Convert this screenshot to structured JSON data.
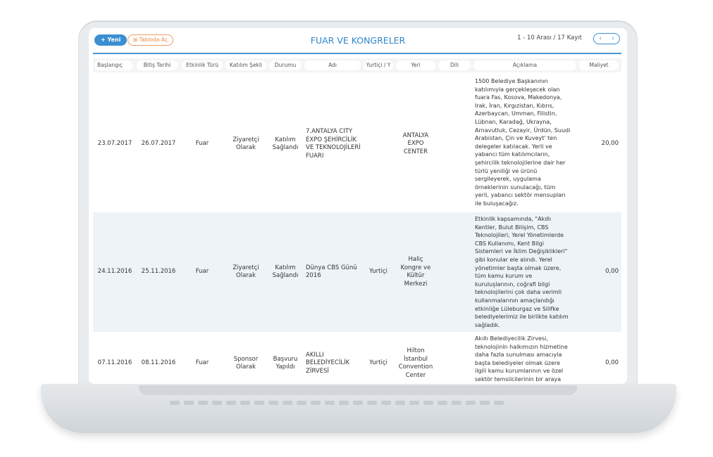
{
  "toolbar": {
    "new_label": "+ Yeni",
    "table_label": "⊞ Tabloda Aç",
    "title": "FUAR VE KONGRELER",
    "range_text": "1 - 10 Arası  /  17 Kayıt",
    "prev": "‹",
    "next": "›"
  },
  "columns": [
    "Başlangıç",
    "Bitiş Tarihi",
    "Etkinlik Türü",
    "Katılım Şekli",
    "Durumu",
    "Adı",
    "Yurtiçi / Y",
    "Yeri",
    "Dili",
    "Açıklama",
    "Maliyet"
  ],
  "rows": [
    {
      "start": "23.07.2017",
      "end": "26.07.2017",
      "type": "Fuar",
      "participation": "Ziyaretçi Olarak",
      "status": "Katılım Sağlandı",
      "name": "7.ANTALYA CITY EXPO ŞEHİRCİLİK VE TEKNOLOJİLERİ FUARI",
      "scope": "",
      "place": "ANTALYA EXPO CENTER",
      "language": "",
      "description": "1500 Belediye Başkanının katılımıyla gerçekleşecek olan fuara Fas, Kosova, Makedonya, Irak, İran, Kırgızistan, Kıbrıs, Azerbaycan, Umman, Filistin, Lübnan, Karadağ, Ukrayna, Arnavutluk, Cezayir, Ürdün, Suudi Arabistan, Çin ve Kuveyt' ten delegeler katılacak. Yerli ve yabancı tüm katılımcıların, şehircilik teknolojilerine dair her türlü yeniliği ve ürünü sergileyerek, uygulama örneklerinin sunulacağı, tüm yerli, yabancı sektör mensupları ile buluşacağız.",
      "cost": "20,00"
    },
    {
      "start": "24.11.2016",
      "end": "25.11.2016",
      "type": "Fuar",
      "participation": "Ziyaretçi Olarak",
      "status": "Katılım Sağlandı",
      "name": "Dünya CBS Günü 2016",
      "scope": "Yurtiçi",
      "place": "Haliç Kongre ve Kültür Merkezi",
      "language": "",
      "description": "Etkinlik kapsamında, \"Akıllı Kentler, Bulut Bilişim, CBS Teknolojileri, Yerel Yönetimlerde CBS Kullanımı, Kent Bilgi Sistemleri ve İklim Değişiklikleri\" gibi konular ele alındı. Yerel yönetimler başta olmak üzere, tüm kamu kurum ve kuruluşlarının, coğrafi bilgi teknolojilerini çok daha verimli kullanmalarının amaçlandığı etkinliğe Lüleburgaz ve Silifke belediyelerimiz ile birlikte katılım sağladık.",
      "cost": "0,00"
    },
    {
      "start": "07.11.2016",
      "end": "08.11.2016",
      "type": "Fuar",
      "participation": "Sponsor Olarak",
      "status": "Başvuru Yapıldı",
      "name": "AKILLI BELEDİYECİLİK ZİRVESİ",
      "scope": "Yurtiçi",
      "place": "Hilton İstanbul Convention Center",
      "language": "",
      "description": "Akıllı Belediyecilik Zirvesi, teknolojinin halkımızın hizmetine daha fazla sunulması amacıyla başta belediyeler olmak üzere ilgili kamu kurumlarının ve özel sektör temsilcilerinin bir araya",
      "cost": "0,00"
    }
  ]
}
